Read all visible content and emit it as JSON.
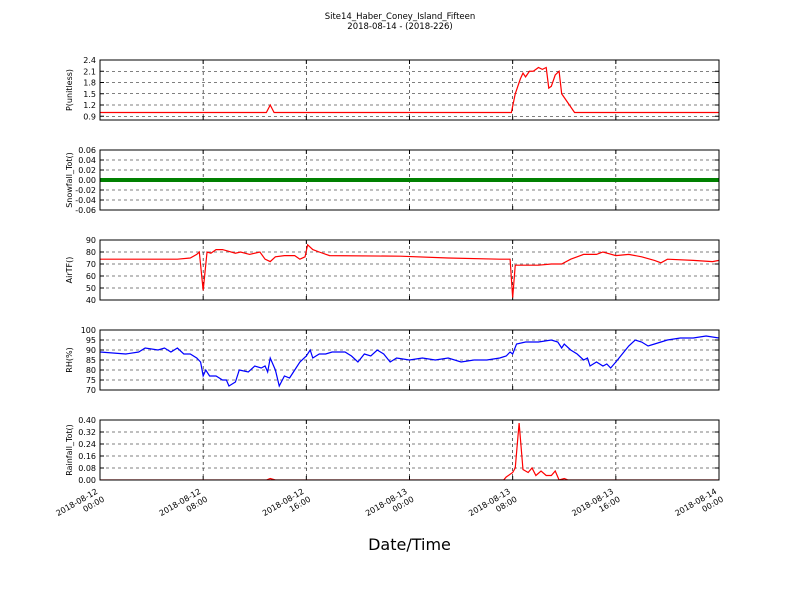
{
  "chart_data": [
    {
      "type": "line",
      "title": "Site14_Haber_Coney_Island_Fifteen",
      "subtitle": "2018-08-14 - (2018-226)",
      "ylabel": "P(unitless)",
      "color": "#ff0000",
      "x": [
        "2018-08-12 00:00",
        "2018-08-12 12:54",
        "2018-08-12 13:12",
        "2018-08-12 13:30",
        "2018-08-13 07:54",
        "2018-08-13 08:12",
        "2018-08-13 08:36",
        "2018-08-13 08:48",
        "2018-08-13 09:00",
        "2018-08-13 09:18",
        "2018-08-13 09:36",
        "2018-08-13 10:00",
        "2018-08-13 10:18",
        "2018-08-13 10:36",
        "2018-08-13 10:48",
        "2018-08-13 11:00",
        "2018-08-13 11:18",
        "2018-08-13 11:36",
        "2018-08-13 11:48",
        "2018-08-13 12:12",
        "2018-08-13 12:36",
        "2018-08-13 12:48",
        "2018-08-14 00:00"
      ],
      "values": [
        1.0,
        1.0,
        1.2,
        1.0,
        1.0,
        1.5,
        1.9,
        2.05,
        1.95,
        2.1,
        2.1,
        2.2,
        2.15,
        2.2,
        1.65,
        1.7,
        2.0,
        2.1,
        1.5,
        1.3,
        1.1,
        1.0,
        1.0
      ],
      "xlim": [
        "2018-08-12 00:00",
        "2018-08-14 00:00"
      ],
      "xticks": [
        "2018-08-12 00:00",
        "2018-08-12 08:00",
        "2018-08-12 16:00",
        "2018-08-13 00:00",
        "2018-08-13 08:00",
        "2018-08-13 16:00",
        "2018-08-14 00:00"
      ],
      "ylim": [
        0.8,
        2.4
      ],
      "yticks": [
        0.9,
        1.2,
        1.5,
        1.8,
        2.1,
        2.4
      ],
      "grid": true
    },
    {
      "type": "line",
      "ylabel": "Snowfall_Tot()",
      "color": "#008000",
      "x": [
        "2018-08-12 00:00",
        "2018-08-14 00:00"
      ],
      "values": [
        0,
        0
      ],
      "xlim": [
        "2018-08-12 00:00",
        "2018-08-14 00:00"
      ],
      "xticks": [
        "2018-08-12 00:00",
        "2018-08-12 08:00",
        "2018-08-12 16:00",
        "2018-08-13 00:00",
        "2018-08-13 08:00",
        "2018-08-13 16:00",
        "2018-08-14 00:00"
      ],
      "ylim": [
        -0.06,
        0.06
      ],
      "yticks": [
        0.06,
        0.04,
        0.02,
        {
          "value": 0,
          "label": "0.00"
        },
        -0.02,
        -0.04,
        -0.06
      ],
      "grid": true
    },
    {
      "type": "line",
      "ylabel": "AirTF()",
      "color": "#ff0000",
      "x": [
        "2018-08-12 00:00",
        "2018-08-12 06:00",
        "2018-08-12 07:00",
        "2018-08-12 07:30",
        "2018-08-12 07:42",
        "2018-08-12 08:00",
        "2018-08-12 08:18",
        "2018-08-12 08:36",
        "2018-08-12 09:00",
        "2018-08-12 09:30",
        "2018-08-12 10:30",
        "2018-08-12 10:54",
        "2018-08-12 11:36",
        "2018-08-12 12:24",
        "2018-08-12 12:48",
        "2018-08-12 13:12",
        "2018-08-12 13:36",
        "2018-08-12 14:18",
        "2018-08-12 15:06",
        "2018-08-12 15:30",
        "2018-08-12 15:54",
        "2018-08-12 16:06",
        "2018-08-12 16:30",
        "2018-08-12 17:00",
        "2018-08-12 17:48",
        "2018-08-12 23:18",
        "2018-08-13 03:00",
        "2018-08-13 07:00",
        "2018-08-13 07:48",
        "2018-08-13 08:00",
        "2018-08-13 08:12",
        "2018-08-13 10:00",
        "2018-08-13 11:00",
        "2018-08-13 11:48",
        "2018-08-13 12:30",
        "2018-08-13 13:00",
        "2018-08-13 13:30",
        "2018-08-13 14:30",
        "2018-08-13 15:00",
        "2018-08-13 16:00",
        "2018-08-13 17:00",
        "2018-08-13 18:00",
        "2018-08-13 19:00",
        "2018-08-13 19:30",
        "2018-08-13 20:00",
        "2018-08-13 22:00",
        "2018-08-13 23:30",
        "2018-08-14 00:00"
      ],
      "values": [
        74,
        74,
        75,
        78,
        80,
        48,
        80,
        79,
        82,
        82,
        79,
        80,
        78,
        80,
        74,
        72,
        76,
        77,
        77,
        74,
        76,
        86,
        82,
        80,
        77,
        76.5,
        75,
        74,
        74,
        42,
        69,
        69,
        70,
        70,
        74,
        76,
        78,
        78,
        80,
        77,
        78,
        76,
        73,
        71,
        74,
        73,
        72,
        73
      ],
      "xlim": [
        "2018-08-12 00:00",
        "2018-08-14 00:00"
      ],
      "xticks": [
        "2018-08-12 00:00",
        "2018-08-12 08:00",
        "2018-08-12 16:00",
        "2018-08-13 00:00",
        "2018-08-13 08:00",
        "2018-08-13 16:00",
        "2018-08-14 00:00"
      ],
      "ylim": [
        40,
        90
      ],
      "yticks": [
        40,
        50,
        60,
        70,
        80,
        90
      ],
      "grid": true
    },
    {
      "type": "line",
      "ylabel": "RH(%)",
      "color": "#0000ff",
      "x": [
        "2018-08-12 00:00",
        "2018-08-12 02:00",
        "2018-08-12 03:00",
        "2018-08-12 03:30",
        "2018-08-12 04:30",
        "2018-08-12 05:00",
        "2018-08-12 05:30",
        "2018-08-12 06:00",
        "2018-08-12 06:30",
        "2018-08-12 07:00",
        "2018-08-12 07:30",
        "2018-08-12 07:48",
        "2018-08-12 08:00",
        "2018-08-12 08:12",
        "2018-08-12 08:30",
        "2018-08-12 09:00",
        "2018-08-12 09:30",
        "2018-08-12 09:48",
        "2018-08-12 10:00",
        "2018-08-12 10:30",
        "2018-08-12 10:48",
        "2018-08-12 11:30",
        "2018-08-12 12:00",
        "2018-08-12 12:30",
        "2018-08-12 12:48",
        "2018-08-12 13:00",
        "2018-08-12 13:12",
        "2018-08-12 13:36",
        "2018-08-12 13:54",
        "2018-08-12 14:18",
        "2018-08-12 14:42",
        "2018-08-12 15:00",
        "2018-08-12 15:30",
        "2018-08-12 16:00",
        "2018-08-12 16:18",
        "2018-08-12 16:30",
        "2018-08-12 17:00",
        "2018-08-12 17:30",
        "2018-08-12 18:00",
        "2018-08-12 19:00",
        "2018-08-12 19:30",
        "2018-08-12 20:00",
        "2018-08-12 20:30",
        "2018-08-12 21:00",
        "2018-08-12 21:30",
        "2018-08-12 22:00",
        "2018-08-12 22:30",
        "2018-08-12 23:00",
        "2018-08-13 00:00",
        "2018-08-13 01:00",
        "2018-08-13 02:00",
        "2018-08-13 03:00",
        "2018-08-13 04:00",
        "2018-08-13 05:00",
        "2018-08-13 06:00",
        "2018-08-13 07:00",
        "2018-08-13 07:30",
        "2018-08-13 07:48",
        "2018-08-13 08:00",
        "2018-08-13 08:18",
        "2018-08-13 09:00",
        "2018-08-13 10:00",
        "2018-08-13 11:00",
        "2018-08-13 11:30",
        "2018-08-13 11:48",
        "2018-08-13 12:00",
        "2018-08-13 12:30",
        "2018-08-13 13:00",
        "2018-08-13 13:30",
        "2018-08-13 13:48",
        "2018-08-13 14:00",
        "2018-08-13 14:30",
        "2018-08-13 15:00",
        "2018-08-13 15:18",
        "2018-08-13 15:36",
        "2018-08-13 16:00",
        "2018-08-13 16:30",
        "2018-08-13 17:00",
        "2018-08-13 17:30",
        "2018-08-13 18:00",
        "2018-08-13 18:30",
        "2018-08-13 19:00",
        "2018-08-13 20:00",
        "2018-08-13 21:00",
        "2018-08-13 22:00",
        "2018-08-13 23:00",
        "2018-08-14 00:00"
      ],
      "values": [
        89,
        88,
        89,
        91,
        90,
        91,
        89,
        91,
        88,
        88,
        86,
        84,
        77,
        80,
        77,
        77,
        75,
        75,
        72,
        74,
        80,
        79,
        82,
        81,
        82,
        79,
        86,
        80,
        72,
        77,
        76,
        79,
        84,
        87,
        90,
        86,
        88,
        88,
        89,
        89,
        87,
        84,
        88,
        87,
        90,
        88,
        84,
        86,
        85,
        86,
        85,
        86,
        84,
        85,
        85,
        86,
        87,
        89,
        88,
        93,
        94,
        94,
        95,
        94,
        91,
        93,
        90,
        88,
        85,
        86,
        82,
        84,
        82,
        83,
        81,
        84,
        88,
        92,
        95,
        94,
        92,
        93,
        95,
        96,
        96,
        97,
        96
      ],
      "xlim": [
        "2018-08-12 00:00",
        "2018-08-14 00:00"
      ],
      "xticks": [
        "2018-08-12 00:00",
        "2018-08-12 08:00",
        "2018-08-12 16:00",
        "2018-08-13 00:00",
        "2018-08-13 08:00",
        "2018-08-13 16:00",
        "2018-08-14 00:00"
      ],
      "ylim": [
        70,
        100
      ],
      "yticks": [
        70,
        75,
        80,
        85,
        90,
        95,
        100
      ],
      "grid": true
    },
    {
      "type": "line",
      "ylabel": "Rainfall_Tot()",
      "xlabel": "Date/Time",
      "color": "#ff0000",
      "x": [
        "2018-08-12 00:00",
        "2018-08-12 12:54",
        "2018-08-12 13:12",
        "2018-08-12 13:36",
        "2018-08-13 07:18",
        "2018-08-13 07:30",
        "2018-08-13 08:00",
        "2018-08-13 08:12",
        "2018-08-13 08:30",
        "2018-08-13 08:48",
        "2018-08-13 09:12",
        "2018-08-13 09:30",
        "2018-08-13 09:48",
        "2018-08-13 10:12",
        "2018-08-13 10:36",
        "2018-08-13 11:00",
        "2018-08-13 11:18",
        "2018-08-13 11:36",
        "2018-08-13 12:00",
        "2018-08-13 12:18",
        "2018-08-14 00:00"
      ],
      "values": [
        0,
        0,
        0.01,
        0,
        0,
        0.02,
        0.05,
        0.08,
        0.38,
        0.07,
        0.05,
        0.08,
        0.03,
        0.06,
        0.03,
        0.03,
        0.06,
        0,
        0.01,
        0,
        0
      ],
      "xlim": [
        "2018-08-12 00:00",
        "2018-08-14 00:00"
      ],
      "xticks": [
        {
          "value": "2018-08-12 00:00",
          "label": "2018-08-12\n00:00"
        },
        {
          "value": "2018-08-12 08:00",
          "label": "2018-08-12\n08:00"
        },
        {
          "value": "2018-08-12 16:00",
          "label": "2018-08-12\n16:00"
        },
        {
          "value": "2018-08-13 00:00",
          "label": "2018-08-13\n00:00"
        },
        {
          "value": "2018-08-13 08:00",
          "label": "2018-08-13\n08:00"
        },
        {
          "value": "2018-08-13 16:00",
          "label": "2018-08-13\n16:00"
        },
        {
          "value": "2018-08-14 00:00",
          "label": "2018-08-14\n00:00"
        }
      ],
      "ylim": [
        0,
        0.4
      ],
      "yticks": [
        {
          "value": 0,
          "label": "0.00"
        },
        0.08,
        0.16,
        0.24,
        0.32,
        {
          "value": 0.4,
          "label": "0.40"
        }
      ],
      "grid": true
    }
  ]
}
